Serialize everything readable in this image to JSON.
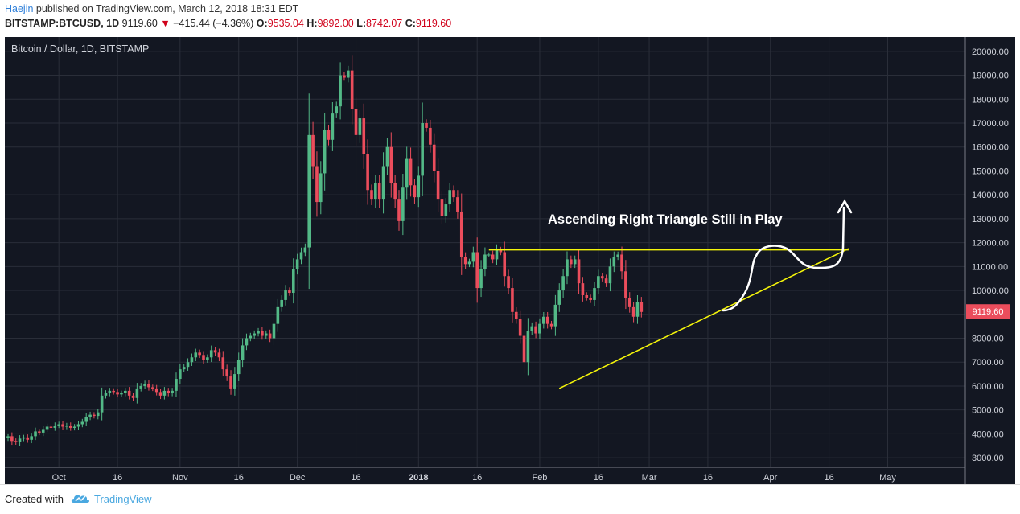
{
  "header": {
    "author": "Haejin",
    "published": "published on TradingView.com, March 12, 2018 18:31 EDT",
    "symbol": "BITSTAMP:BTCUSD, 1D",
    "last": "9119.60",
    "change_arrow": "▼",
    "change": "−415.44 (−4.36%)",
    "o_label": "O:",
    "o_value": "9535.04",
    "h_label": "H:",
    "h_value": "9892.00",
    "l_label": "L:",
    "l_value": "8742.07",
    "c_label": "C:",
    "c_value": "9119.60"
  },
  "chart_data": {
    "type": "candlestick",
    "title": "Bitcoin / Dollar, 1D, BITSTAMP",
    "annotation": "Ascending Right Triangle Still in Play",
    "y_ticks": [
      "20000.00",
      "19000.00",
      "18000.00",
      "17000.00",
      "16000.00",
      "15000.00",
      "14000.00",
      "13000.00",
      "12000.00",
      "11000.00",
      "10000.00",
      "9000.00",
      "8000.00",
      "7000.00",
      "6000.00",
      "5000.00",
      "4000.00",
      "3000.00"
    ],
    "ylim": [
      2600,
      20600
    ],
    "x_ticks": [
      "Oct",
      "16",
      "Nov",
      "16",
      "Dec",
      "16",
      "2018",
      "16",
      "Feb",
      "16",
      "Mar",
      "16",
      "Apr",
      "16",
      "May"
    ],
    "last_price_label": "9119.60",
    "grid": true,
    "colors": {
      "up": "#53b987",
      "down": "#eb4d5c",
      "background": "#131722",
      "grid": "#2a2e39",
      "trendline": "#f5f50a",
      "annotation": "#ffffff",
      "price_tag": "#eb4d5c"
    },
    "closes": [
      3900,
      3700,
      3650,
      3800,
      3850,
      3750,
      3900,
      4100,
      4050,
      4200,
      4300,
      4250,
      4350,
      4400,
      4300,
      4350,
      4250,
      4300,
      4400,
      4500,
      4700,
      4800,
      4750,
      4900,
      5600,
      5700,
      5800,
      5750,
      5650,
      5700,
      5800,
      5600,
      5500,
      5900,
      6000,
      6100,
      5950,
      5900,
      5750,
      5600,
      5800,
      5700,
      5800,
      6300,
      6700,
      6800,
      7000,
      7200,
      7400,
      7300,
      7100,
      7200,
      7500,
      7400,
      7200,
      6700,
      6400,
      5900,
      6500,
      7100,
      7700,
      8000,
      8100,
      8200,
      8300,
      8100,
      8200,
      8000,
      8600,
      9300,
      9600,
      10000,
      9900,
      10900,
      11300,
      11600,
      11800,
      16500,
      15200,
      13700,
      14900,
      16700,
      16300,
      17400,
      17700,
      19000,
      18900,
      19200,
      17600,
      16500,
      17200,
      15700,
      14200,
      13800,
      14500,
      13800,
      15200,
      16000,
      14500,
      13800,
      12900,
      14300,
      15500,
      14400,
      13900,
      14800,
      17000,
      16800,
      16100,
      15000,
      13800,
      13100,
      13600,
      14200,
      13900,
      13300,
      11400,
      11100,
      11200,
      11600,
      10100,
      10900,
      11500,
      11500,
      11300,
      11700,
      11600,
      10600,
      10100,
      9100,
      8800,
      8100,
      7000,
      8300,
      8500,
      8200,
      8600,
      8900,
      8600,
      8500,
      9400,
      10000,
      10600,
      11300,
      11100,
      11300,
      10300,
      9800,
      9700,
      9600,
      10100,
      10600,
      10500,
      10300,
      11000,
      11400,
      11500,
      10800,
      9700,
      9300,
      8900,
      9500,
      9100
    ],
    "trendlines": [
      {
        "from": [
          "2018-01-19",
          11700
        ],
        "to": [
          "2018-04-21",
          11700
        ]
      },
      {
        "from": [
          "2018-02-06",
          5900
        ],
        "to": [
          "2018-04-21",
          11750
        ]
      }
    ]
  },
  "footer": {
    "created": "Created with",
    "brand": "TradingView"
  }
}
